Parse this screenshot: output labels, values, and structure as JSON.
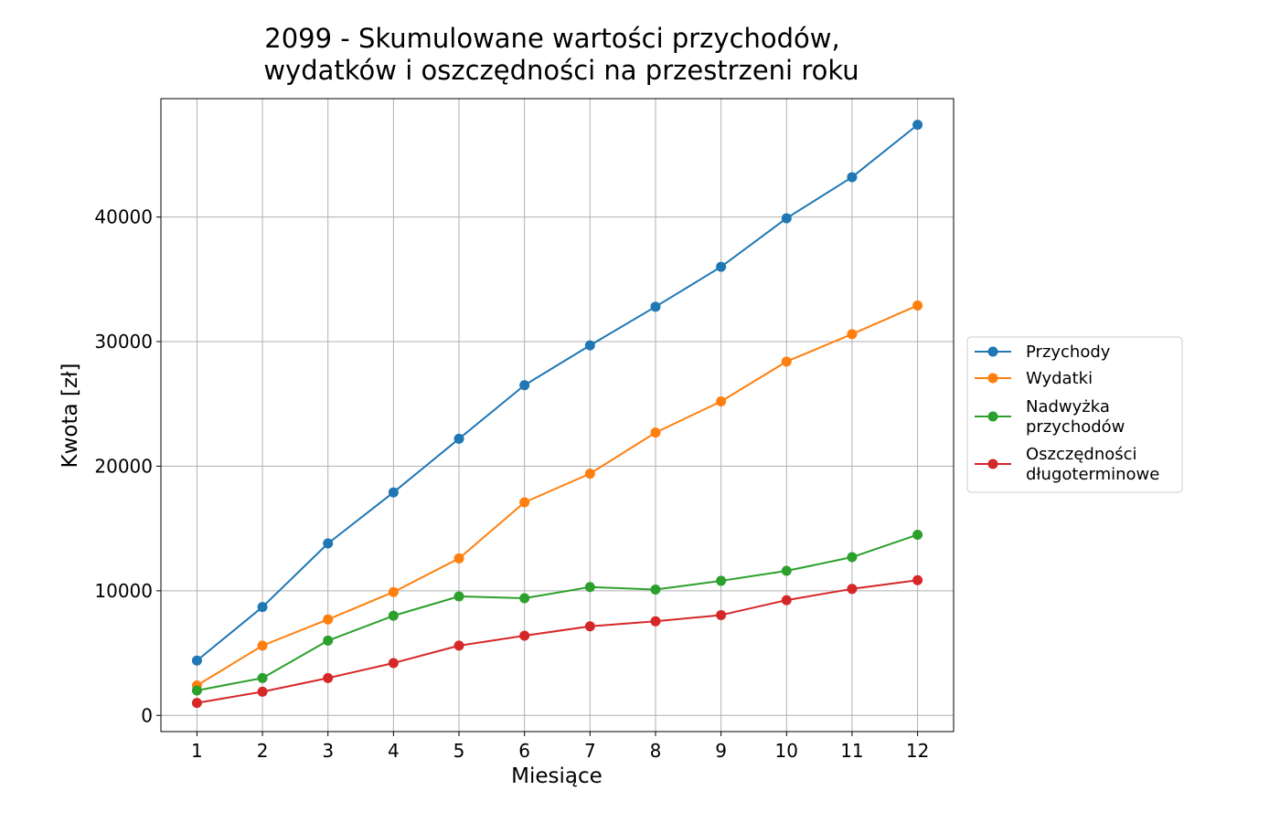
{
  "chart_data": {
    "type": "line",
    "title_lines": [
      "2099 - Skumulowane wartości przychodów,",
      "wydatków i oszczędności na przestrzeni roku"
    ],
    "xlabel": "Miesiące",
    "ylabel": "Kwota [zł]",
    "x": [
      1,
      2,
      3,
      4,
      5,
      6,
      7,
      8,
      9,
      10,
      11,
      12
    ],
    "xlim": [
      0.45,
      12.55
    ],
    "ylim": [
      -1300,
      49500
    ],
    "yticks": [
      0,
      10000,
      20000,
      30000,
      40000
    ],
    "grid": true,
    "legend_position": "right",
    "series": [
      {
        "name_lines": [
          "Przychody"
        ],
        "color": "#1f77b4",
        "values": [
          4400,
          8700,
          13800,
          17900,
          22200,
          26500,
          29700,
          32800,
          36000,
          39900,
          43200,
          47400
        ]
      },
      {
        "name_lines": [
          "Wydatki"
        ],
        "color": "#ff7f0e",
        "values": [
          2400,
          5600,
          7700,
          9900,
          12600,
          17100,
          19400,
          22700,
          25200,
          28400,
          30600,
          32900
        ]
      },
      {
        "name_lines": [
          "Nadwyżka",
          "przychodów"
        ],
        "color": "#2ca02c",
        "values": [
          2000,
          3000,
          6000,
          8000,
          9550,
          9400,
          10300,
          10100,
          10800,
          11600,
          12700,
          14500
        ]
      },
      {
        "name_lines": [
          "Oszczędności",
          "długoterminowe"
        ],
        "color": "#d62728",
        "values": [
          1000,
          1900,
          3000,
          4200,
          5600,
          6400,
          7150,
          7550,
          8050,
          9250,
          10150,
          10850
        ]
      }
    ]
  }
}
